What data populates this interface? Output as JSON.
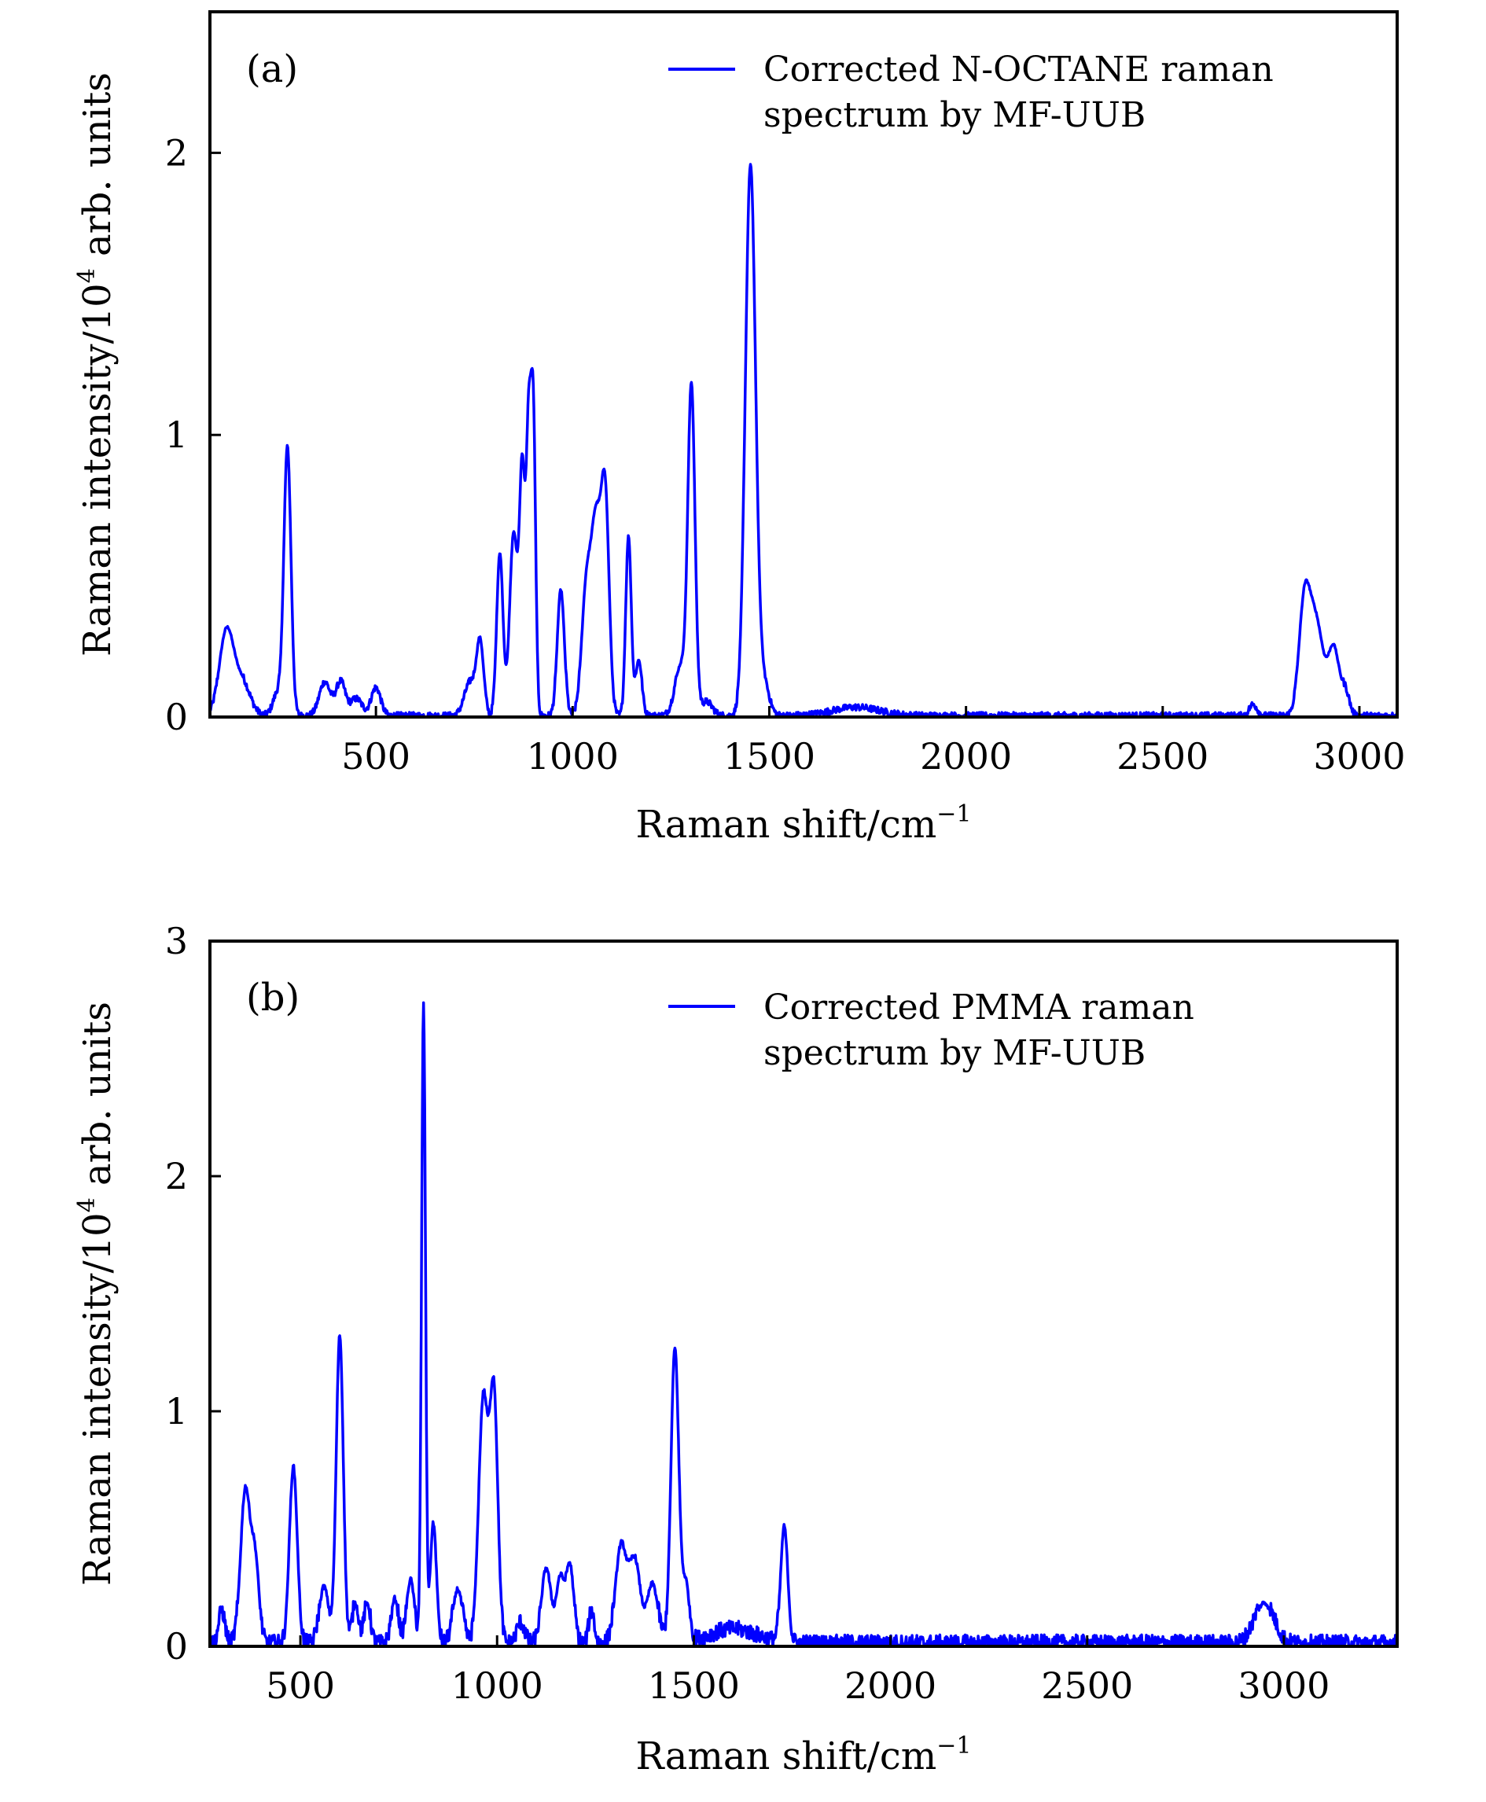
{
  "chart_data": [
    {
      "type": "line",
      "panel_label": "(a)",
      "xlabel": "Raman shift/cm",
      "xlabel_sup": "−1",
      "ylabel": "Raman intensity/10",
      "ylabel_sup": "4",
      "ylabel_tail": " arb. units",
      "xlim": [
        78,
        3096
      ],
      "ylim": [
        0,
        2.5
      ],
      "xticks": [
        500,
        1000,
        1500,
        2000,
        2500,
        3000
      ],
      "xtick_labels": [
        "500",
        "1000",
        "1500",
        "2000",
        "2500",
        "3000"
      ],
      "yticks": [
        0,
        1,
        2
      ],
      "ytick_labels": [
        "0",
        "1",
        "2"
      ],
      "legend": [
        "Corrected N-OCTANE raman",
        "spectrum by MF-UUB"
      ],
      "legend_placement": "top-right",
      "color": "#0000ff",
      "noise": 0.012,
      "peaks": [
        {
          "x": 120,
          "y": 0.3,
          "w": 18
        },
        {
          "x": 160,
          "y": 0.12,
          "w": 20
        },
        {
          "x": 275,
          "y": 0.95,
          "w": 9
        },
        {
          "x": 250,
          "y": 0.08,
          "w": 12
        },
        {
          "x": 370,
          "y": 0.12,
          "w": 14
        },
        {
          "x": 410,
          "y": 0.12,
          "w": 12
        },
        {
          "x": 450,
          "y": 0.06,
          "w": 15
        },
        {
          "x": 500,
          "y": 0.1,
          "w": 12
        },
        {
          "x": 740,
          "y": 0.12,
          "w": 15
        },
        {
          "x": 765,
          "y": 0.25,
          "w": 9
        },
        {
          "x": 815,
          "y": 0.58,
          "w": 8
        },
        {
          "x": 850,
          "y": 0.65,
          "w": 10
        },
        {
          "x": 872,
          "y": 0.85,
          "w": 7
        },
        {
          "x": 888,
          "y": 0.95,
          "w": 6
        },
        {
          "x": 900,
          "y": 1.05,
          "w": 6
        },
        {
          "x": 970,
          "y": 0.45,
          "w": 9
        },
        {
          "x": 1035,
          "y": 0.45,
          "w": 12
        },
        {
          "x": 1060,
          "y": 0.65,
          "w": 12
        },
        {
          "x": 1083,
          "y": 0.75,
          "w": 10
        },
        {
          "x": 1142,
          "y": 0.64,
          "w": 7
        },
        {
          "x": 1168,
          "y": 0.2,
          "w": 8
        },
        {
          "x": 1275,
          "y": 0.18,
          "w": 15
        },
        {
          "x": 1302,
          "y": 1.15,
          "w": 9
        },
        {
          "x": 1340,
          "y": 0.05,
          "w": 15
        },
        {
          "x": 1452,
          "y": 1.95,
          "w": 13
        },
        {
          "x": 1485,
          "y": 0.12,
          "w": 14
        },
        {
          "x": 1720,
          "y": 0.03,
          "w": 60
        },
        {
          "x": 2730,
          "y": 0.04,
          "w": 10
        },
        {
          "x": 2860,
          "y": 0.38,
          "w": 14
        },
        {
          "x": 2890,
          "y": 0.33,
          "w": 18
        },
        {
          "x": 2935,
          "y": 0.24,
          "w": 14
        },
        {
          "x": 2965,
          "y": 0.08,
          "w": 10
        }
      ]
    },
    {
      "type": "line",
      "panel_label": "(b)",
      "xlabel": "Raman shift/cm",
      "xlabel_sup": "−1",
      "ylabel": "Raman intensity/10",
      "ylabel_sup": "4",
      "ylabel_tail": " arb. units",
      "xlim": [
        270,
        3288
      ],
      "ylim": [
        0,
        3
      ],
      "xticks": [
        500,
        1000,
        1500,
        2000,
        2500,
        3000
      ],
      "xtick_labels": [
        "500",
        "1000",
        "1500",
        "2000",
        "2500",
        "3000"
      ],
      "yticks": [
        0,
        1,
        2,
        3
      ],
      "ytick_labels": [
        "0",
        "1",
        "2",
        "3"
      ],
      "legend": [
        "Corrected PMMA raman",
        "spectrum by MF-UUB"
      ],
      "legend_placement": "top-right",
      "color": "#0000ff",
      "noise": 0.035,
      "peaks": [
        {
          "x": 300,
          "y": 0.14,
          "w": 8
        },
        {
          "x": 360,
          "y": 0.66,
          "w": 12
        },
        {
          "x": 385,
          "y": 0.35,
          "w": 10
        },
        {
          "x": 482,
          "y": 0.76,
          "w": 10
        },
        {
          "x": 560,
          "y": 0.25,
          "w": 12
        },
        {
          "x": 600,
          "y": 1.32,
          "w": 9
        },
        {
          "x": 640,
          "y": 0.18,
          "w": 8
        },
        {
          "x": 670,
          "y": 0.18,
          "w": 8
        },
        {
          "x": 740,
          "y": 0.2,
          "w": 9
        },
        {
          "x": 780,
          "y": 0.28,
          "w": 10
        },
        {
          "x": 813,
          "y": 2.72,
          "w": 5
        },
        {
          "x": 838,
          "y": 0.52,
          "w": 8
        },
        {
          "x": 900,
          "y": 0.24,
          "w": 12
        },
        {
          "x": 965,
          "y": 1.05,
          "w": 12
        },
        {
          "x": 992,
          "y": 1.05,
          "w": 10
        },
        {
          "x": 1060,
          "y": 0.09,
          "w": 10
        },
        {
          "x": 1125,
          "y": 0.33,
          "w": 12
        },
        {
          "x": 1160,
          "y": 0.28,
          "w": 10
        },
        {
          "x": 1185,
          "y": 0.34,
          "w": 10
        },
        {
          "x": 1240,
          "y": 0.14,
          "w": 7
        },
        {
          "x": 1315,
          "y": 0.42,
          "w": 14
        },
        {
          "x": 1350,
          "y": 0.36,
          "w": 14
        },
        {
          "x": 1395,
          "y": 0.26,
          "w": 14
        },
        {
          "x": 1452,
          "y": 1.26,
          "w": 10
        },
        {
          "x": 1480,
          "y": 0.25,
          "w": 9
        },
        {
          "x": 1600,
          "y": 0.06,
          "w": 60
        },
        {
          "x": 1730,
          "y": 0.5,
          "w": 9
        },
        {
          "x": 2950,
          "y": 0.18,
          "w": 25
        }
      ]
    }
  ]
}
